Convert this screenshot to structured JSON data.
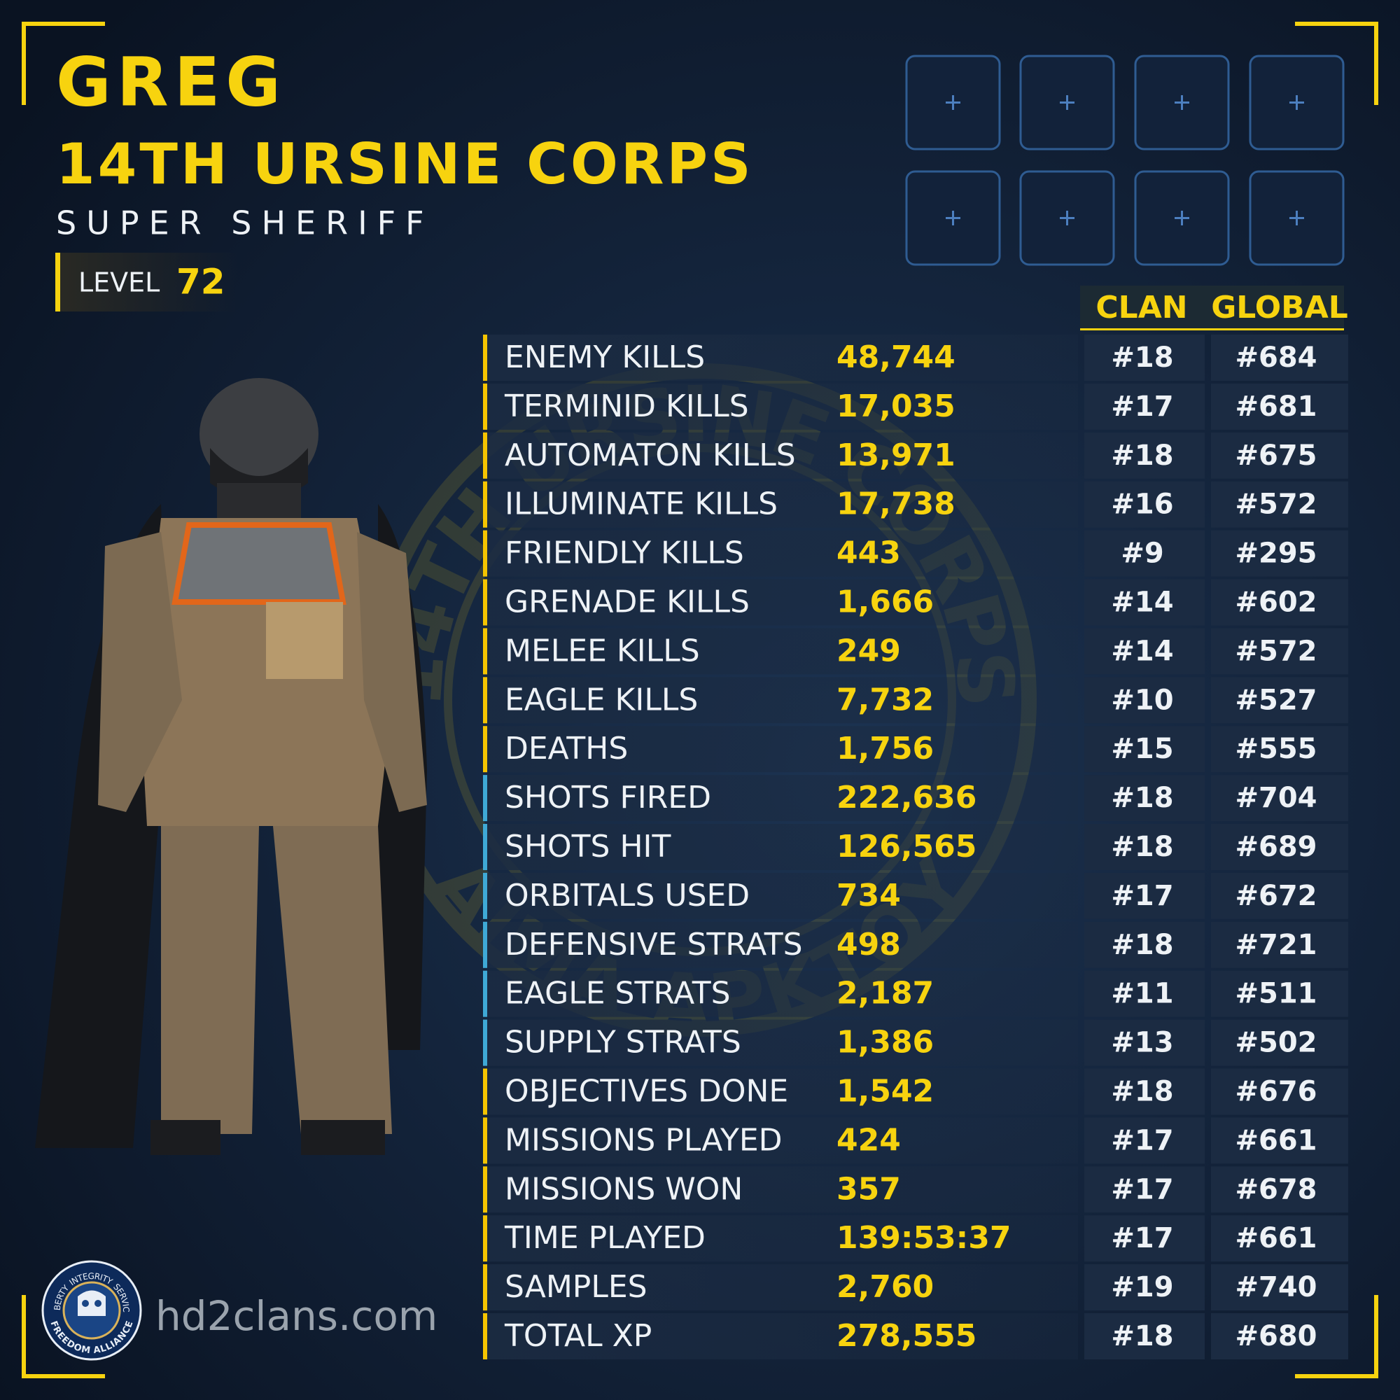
{
  "header": {
    "name": "GREG",
    "clan": "14TH URSINE CORPS",
    "title": "SUPER SHERIFF",
    "level_label": "LEVEL",
    "level": "72"
  },
  "watermark": {
    "top": "14TH URSINE CORPS",
    "bottom": "ΑΙΜΑ ΑΡΚΤΟΥ"
  },
  "table": {
    "columns": [
      "CLAN",
      "GLOBAL"
    ],
    "rows": [
      {
        "label": "ENEMY KILLS",
        "value": "48,744",
        "clan": "#18",
        "global": "#684",
        "accent": "#f5c400"
      },
      {
        "label": "TERMINID KILLS",
        "value": "17,035",
        "clan": "#17",
        "global": "#681",
        "accent": "#f5c400"
      },
      {
        "label": "AUTOMATON KILLS",
        "value": "13,971",
        "clan": "#18",
        "global": "#675",
        "accent": "#f5c400"
      },
      {
        "label": "ILLUMINATE KILLS",
        "value": "17,738",
        "clan": "#16",
        "global": "#572",
        "accent": "#f5c400"
      },
      {
        "label": "FRIENDLY KILLS",
        "value": "443",
        "clan": "#9",
        "global": "#295",
        "accent": "#f5c400"
      },
      {
        "label": "GRENADE KILLS",
        "value": "1,666",
        "clan": "#14",
        "global": "#602",
        "accent": "#f5c400"
      },
      {
        "label": "MELEE KILLS",
        "value": "249",
        "clan": "#14",
        "global": "#572",
        "accent": "#f5c400"
      },
      {
        "label": "EAGLE KILLS",
        "value": "7,732",
        "clan": "#10",
        "global": "#527",
        "accent": "#f5c400"
      },
      {
        "label": "DEATHS",
        "value": "1,756",
        "clan": "#15",
        "global": "#555",
        "accent": "#f5c400"
      },
      {
        "label": "SHOTS FIRED",
        "value": "222,636",
        "clan": "#18",
        "global": "#704",
        "accent": "#3fa9d6"
      },
      {
        "label": "SHOTS HIT",
        "value": "126,565",
        "clan": "#18",
        "global": "#689",
        "accent": "#3fa9d6"
      },
      {
        "label": "ORBITALS USED",
        "value": "734",
        "clan": "#17",
        "global": "#672",
        "accent": "#3fa9d6"
      },
      {
        "label": "DEFENSIVE STRATS",
        "value": "498",
        "clan": "#18",
        "global": "#721",
        "accent": "#3fa9d6"
      },
      {
        "label": "EAGLE STRATS",
        "value": "2,187",
        "clan": "#11",
        "global": "#511",
        "accent": "#3fa9d6"
      },
      {
        "label": "SUPPLY STRATS",
        "value": "1,386",
        "clan": "#13",
        "global": "#502",
        "accent": "#3fa9d6"
      },
      {
        "label": "OBJECTIVES DONE",
        "value": "1,542",
        "clan": "#18",
        "global": "#676",
        "accent": "#f5c400"
      },
      {
        "label": "MISSIONS PLAYED",
        "value": "424",
        "clan": "#17",
        "global": "#661",
        "accent": "#f5c400"
      },
      {
        "label": "MISSIONS WON",
        "value": "357",
        "clan": "#17",
        "global": "#678",
        "accent": "#f5c400"
      },
      {
        "label": "TIME PLAYED",
        "value": "139:53:37",
        "clan": "#17",
        "global": "#661",
        "accent": "#f5c400"
      },
      {
        "label": "SAMPLES",
        "value": "2,760",
        "clan": "#19",
        "global": "#740",
        "accent": "#f5c400"
      },
      {
        "label": "TOTAL XP",
        "value": "278,555",
        "clan": "#18",
        "global": "#680",
        "accent": "#f5c400"
      }
    ]
  },
  "footer": {
    "site": "hd2clans.com",
    "badge": {
      "words": [
        "LIBERTY",
        "INTEGRITY",
        "SERVICE"
      ],
      "name": "FREEDOM ALLIANCE"
    }
  }
}
